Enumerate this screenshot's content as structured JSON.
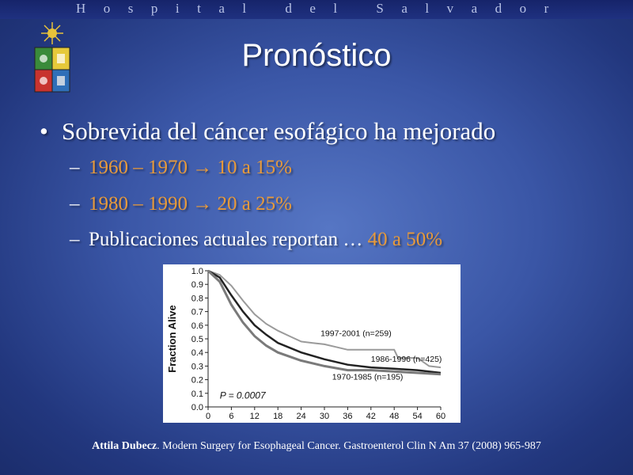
{
  "header": {
    "hospital_name": "Hospital del Salvador"
  },
  "slide": {
    "title": "Pronóstico",
    "bullet": "Sobrevida del cáncer esofágico ha mejorado",
    "subs": [
      {
        "prefix": "1960 – 1970",
        "arrow": "→",
        "value": "10 a 15%"
      },
      {
        "prefix": "1980 – 1990",
        "arrow": "→",
        "value": "20 a 25%"
      },
      {
        "prefix": "Publicaciones actuales reportan …",
        "value": "40 a 50%"
      }
    ]
  },
  "citation": {
    "author": "Attila Dubecz",
    "rest": ". Modern Surgery for Esophageal Cancer.  Gastroenterol Clin N Am 37 (2008) 965-987"
  },
  "colors": {
    "accent_orange": "#e89a3a",
    "background": "#3a56a6"
  },
  "chart_data": {
    "type": "line",
    "ylabel": "Fraction Alive",
    "xlabel": "",
    "x_ticks": [
      0,
      6,
      12,
      18,
      24,
      30,
      36,
      42,
      48,
      54,
      60
    ],
    "y_ticks": [
      "0.0",
      "0.1",
      "0.2",
      "0.3",
      "0.4",
      "0.5",
      "0.6",
      "0.7",
      "0.8",
      "0.9",
      "1.0"
    ],
    "xlim": [
      0,
      60
    ],
    "ylim": [
      0,
      1
    ],
    "annotation": "P = 0.0007",
    "series": [
      {
        "name": "1997-2001 (n=259)",
        "color": "#9a9a9a",
        "x": [
          0,
          3,
          6,
          9,
          12,
          15,
          18,
          21,
          24,
          27,
          30,
          33,
          36,
          42,
          48,
          49,
          54,
          57,
          60
        ],
        "y": [
          1.0,
          0.97,
          0.89,
          0.78,
          0.68,
          0.61,
          0.56,
          0.52,
          0.48,
          0.47,
          0.46,
          0.44,
          0.42,
          0.42,
          0.42,
          0.36,
          0.36,
          0.3,
          0.29
        ]
      },
      {
        "name": "1986-1996 (n=425)",
        "color": "#222222",
        "x": [
          0,
          3,
          6,
          9,
          12,
          15,
          18,
          24,
          30,
          36,
          42,
          48,
          54,
          60
        ],
        "y": [
          1.0,
          0.95,
          0.82,
          0.7,
          0.6,
          0.53,
          0.47,
          0.4,
          0.35,
          0.31,
          0.29,
          0.28,
          0.27,
          0.25
        ]
      },
      {
        "name": "1970-1985 (n=195)",
        "color": "#7a7a7a",
        "x": [
          0,
          3,
          6,
          9,
          12,
          15,
          18,
          24,
          30,
          36,
          42,
          48,
          54,
          60
        ],
        "y": [
          1.0,
          0.92,
          0.75,
          0.62,
          0.52,
          0.45,
          0.4,
          0.34,
          0.3,
          0.27,
          0.27,
          0.26,
          0.25,
          0.24
        ]
      }
    ]
  }
}
